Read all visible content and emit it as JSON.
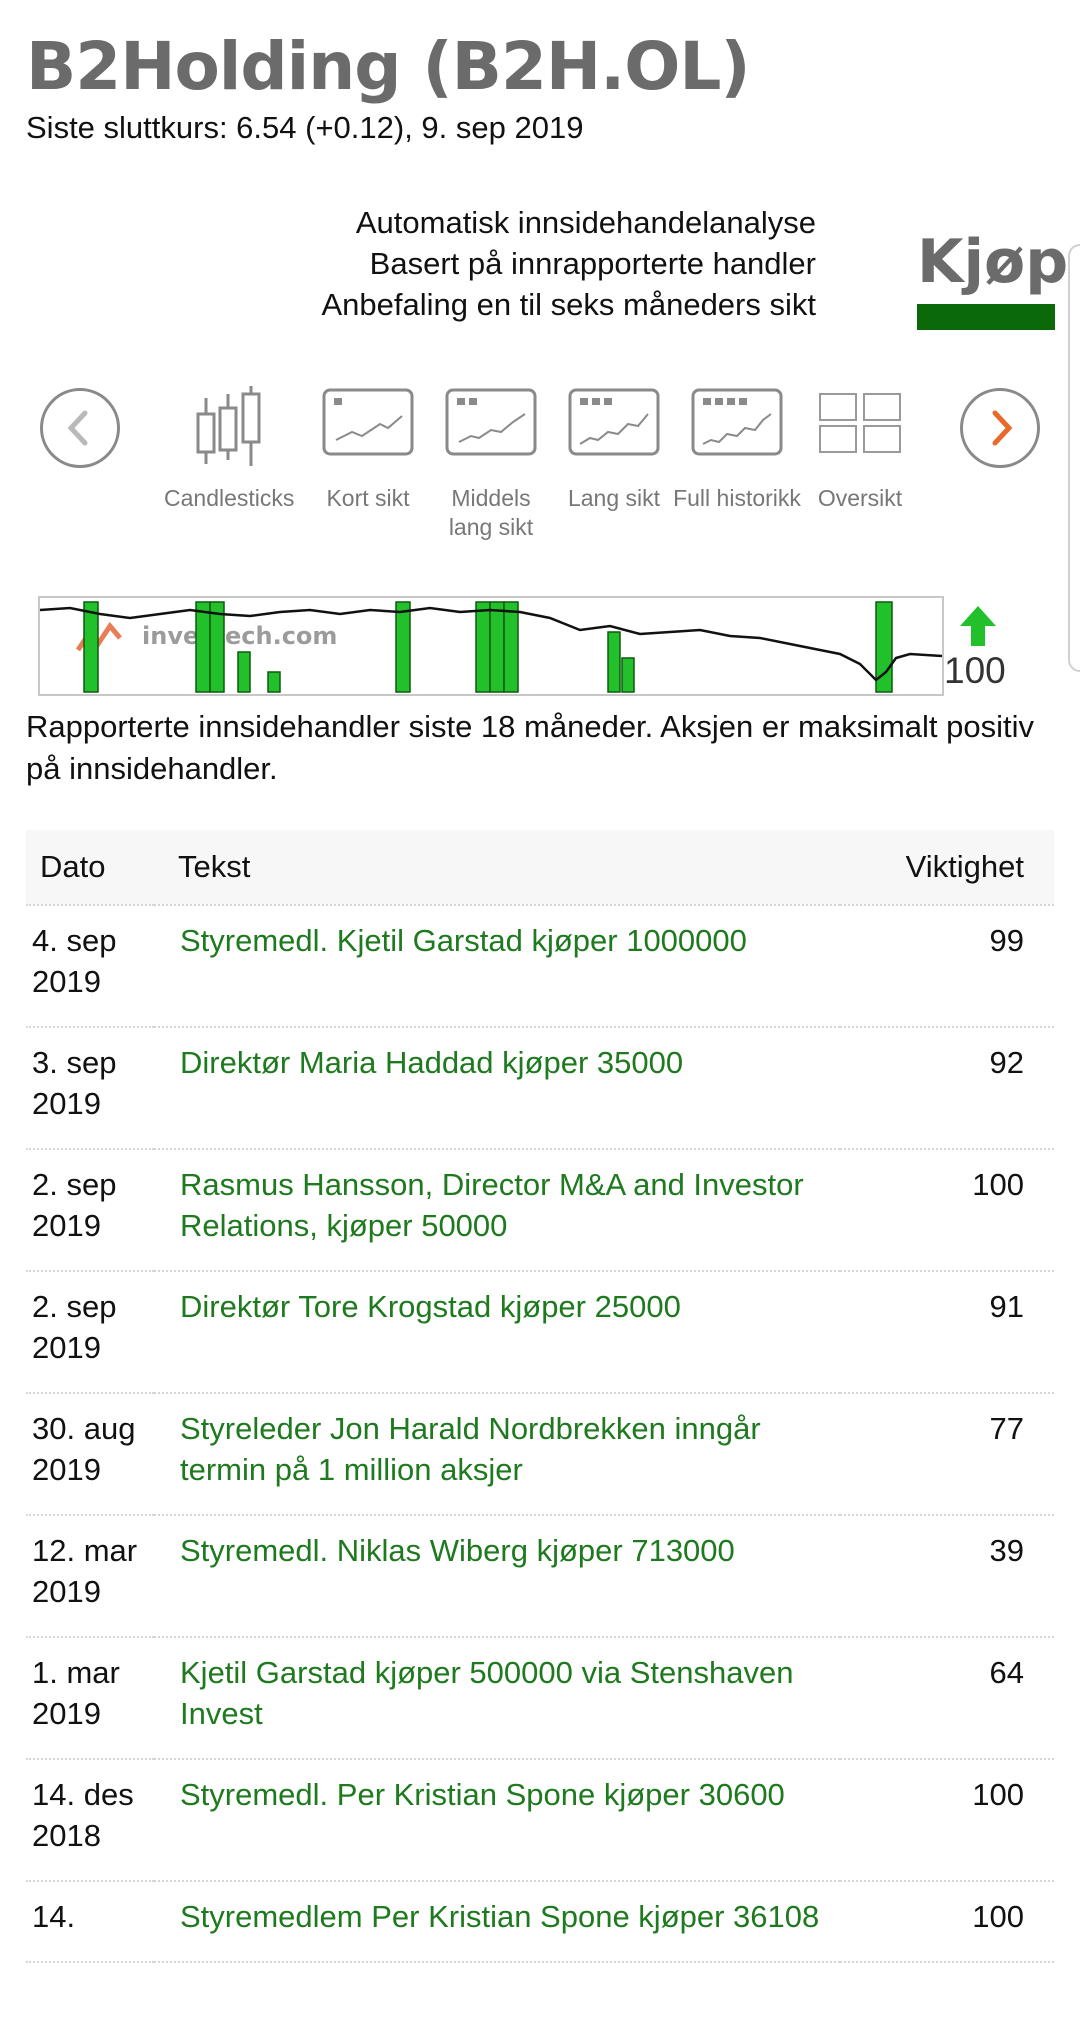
{
  "header": {
    "title": "B2Holding (B2H.OL)",
    "subtitle": "Siste sluttkurs: 6.54 (+0.12), 9. sep 2019"
  },
  "analysis": {
    "lines": [
      "Automatisk innsidehandelanalyse",
      "Basert på innrapporterte handler",
      "Anbefaling en til seks måneders sikt"
    ],
    "recommendation": "Kjøp",
    "recommendation_color": "#0a6a0a"
  },
  "views": [
    {
      "label": "Candlesticks",
      "icon": "candlesticks-icon"
    },
    {
      "label": "Kort sikt",
      "icon": "short-term-chart-icon"
    },
    {
      "label": "Middels lang sikt",
      "icon": "medium-term-chart-icon"
    },
    {
      "label": "Lang sikt",
      "icon": "long-term-chart-icon"
    },
    {
      "label": "Full historikk",
      "icon": "full-history-chart-icon"
    },
    {
      "label": "Oversikt",
      "icon": "overview-grid-icon"
    }
  ],
  "nav": {
    "prev_icon": "chevron-left-icon",
    "next_icon": "chevron-right-icon",
    "next_color": "#e86a2c"
  },
  "mini_chart": {
    "watermark": "investech.com",
    "score": "100",
    "score_icon": "green-up-arrow-icon"
  },
  "description": "Rapporterte innsidehandler siste 18 måneder. Aksjen er maksimalt positiv på innsidehandler.",
  "table": {
    "headers": {
      "date": "Dato",
      "text": "Tekst",
      "importance": "Viktighet"
    },
    "rows": [
      {
        "date": "4. sep 2019",
        "text": "Styremedl. Kjetil Garstad kjøper 1000000",
        "importance": "99"
      },
      {
        "date": "3. sep 2019",
        "text": "Direktør Maria Haddad kjøper 35000",
        "importance": "92"
      },
      {
        "date": "2. sep 2019",
        "text": "Rasmus Hansson, Director M&A and Investor Relations, kjøper 50000",
        "importance": "100"
      },
      {
        "date": "2. sep 2019",
        "text": "Direktør Tore Krogstad kjøper 25000",
        "importance": "91"
      },
      {
        "date": "30. aug 2019",
        "text": "Styreleder Jon Harald Nordbrekken inngår termin på 1 million aksjer",
        "importance": "77"
      },
      {
        "date": "12. mar 2019",
        "text": "Styremedl. Niklas Wiberg kjøper 713000",
        "importance": "39"
      },
      {
        "date": "1. mar 2019",
        "text": "Kjetil Garstad kjøper 500000 via Stenshaven Invest",
        "importance": "64"
      },
      {
        "date": "14. des 2018",
        "text": "Styremedl. Per Kristian Spone kjøper 30600",
        "importance": "100"
      },
      {
        "date": "14.",
        "text": "Styremedlem Per Kristian Spone kjøper 36108",
        "importance": "100"
      }
    ]
  }
}
